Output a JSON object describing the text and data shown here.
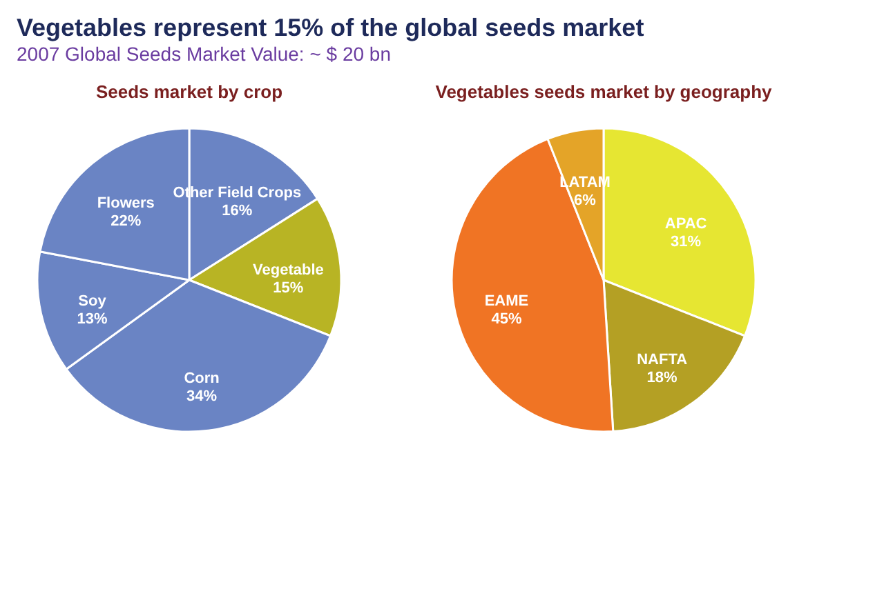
{
  "chart_data": [
    {
      "type": "pie",
      "title": "Seeds market by crop",
      "annotations": [
        "Vegetables represent 15% of the global seeds market",
        "2007 Global Seeds Market Value: ~ $ 20 bn"
      ],
      "categories": [
        "Other Field Crops",
        "Vegetable",
        "Corn",
        "Soy",
        "Flowers"
      ],
      "values": [
        16,
        15,
        34,
        13,
        22
      ],
      "value_labels": [
        "16%",
        "15%",
        "34%",
        "13%",
        "22%"
      ],
      "colors": [
        "#6a84c4",
        "#b8b424",
        "#6a84c4",
        "#6a84c4",
        "#6a84c4"
      ]
    },
    {
      "type": "pie",
      "title": "Vegetables seeds market by geography",
      "categories": [
        "APAC",
        "NAFTA",
        "EAME",
        "LATAM"
      ],
      "values": [
        31,
        18,
        45,
        6
      ],
      "value_labels": [
        "31%",
        "18%",
        "45%",
        "6%"
      ],
      "colors": [
        "#e6e632",
        "#b4a024",
        "#f07424",
        "#e4a428"
      ]
    }
  ]
}
